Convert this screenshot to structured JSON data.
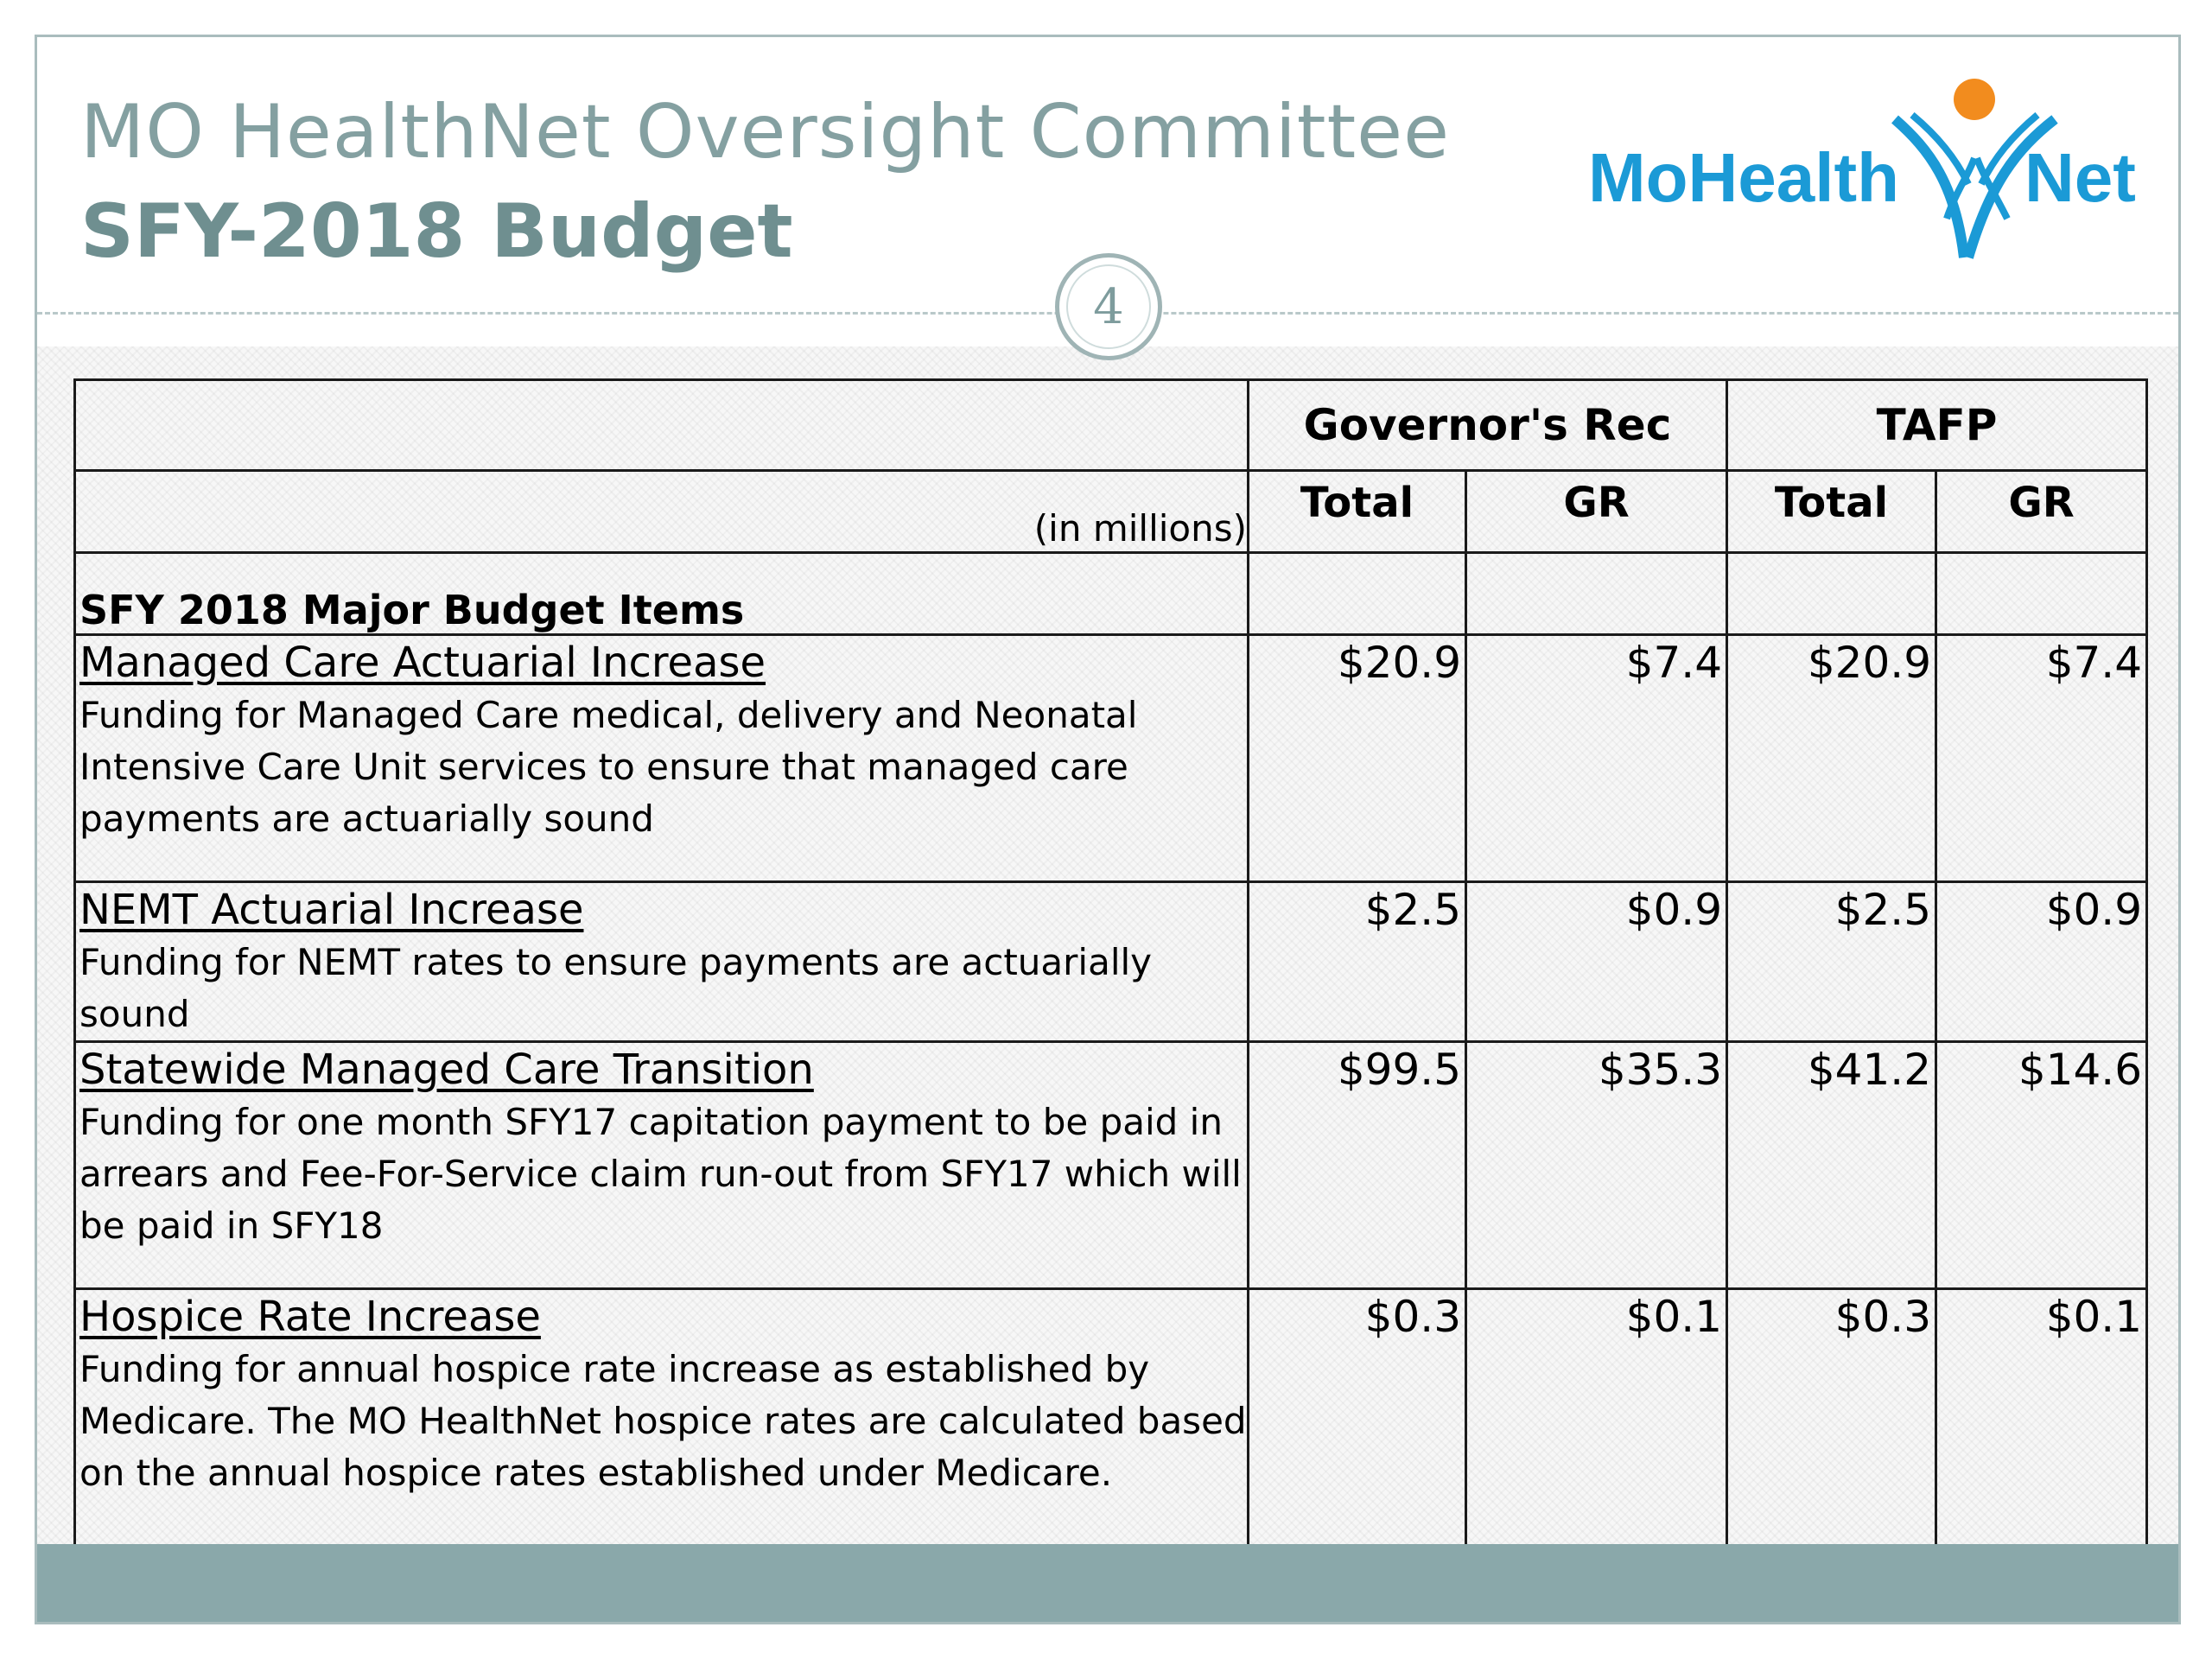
{
  "header": {
    "title_line1": "MO HealthNet Oversight Committee",
    "title_line2": "SFY-2018 Budget",
    "slide_number": "4",
    "logo_text_left": "MoHealth",
    "logo_text_right": "Net"
  },
  "colors": {
    "title_gray_green": "#84a0a1",
    "logo_blue": "#1b9ad6",
    "logo_orange": "#f28c1e",
    "footer_bar": "#8aa8aa"
  },
  "table": {
    "group_headers": [
      "Governor's Rec",
      "TAFP"
    ],
    "sub_headers": [
      "Total",
      "GR",
      "Total",
      "GR"
    ],
    "units_label": "(in millions)",
    "section_label": "SFY 2018 Major Budget Items",
    "rows": [
      {
        "title": "Managed Care Actuarial Increase",
        "description": "Funding for Managed Care medical, delivery and Neonatal Intensive Care Unit services to ensure that managed care payments are actuarially sound",
        "gov_total": "$20.9",
        "gov_gr": "$7.4",
        "tafp_total": "$20.9",
        "tafp_gr": "$7.4"
      },
      {
        "title": "NEMT Actuarial Increase",
        "description": "Funding for NEMT rates to ensure payments are actuarially sound",
        "gov_total": "$2.5",
        "gov_gr": "$0.9",
        "tafp_total": "$2.5",
        "tafp_gr": "$0.9"
      },
      {
        "title": "Statewide Managed Care Transition",
        "description": "Funding for one month SFY17 capitation payment to be paid in arrears and Fee-For-Service claim run-out from SFY17 which will be paid in SFY18",
        "gov_total": "$99.5",
        "gov_gr": "$35.3",
        "tafp_total": "$41.2",
        "tafp_gr": "$14.6"
      },
      {
        "title": "Hospice Rate Increase",
        "description": "Funding for annual hospice rate increase as established by Medicare. The MO HealthNet hospice rates are calculated based on the annual hospice rates established under Medicare.",
        "gov_total": "$0.3",
        "gov_gr": "$0.1",
        "tafp_total": "$0.3",
        "tafp_gr": "$0.1"
      }
    ]
  }
}
